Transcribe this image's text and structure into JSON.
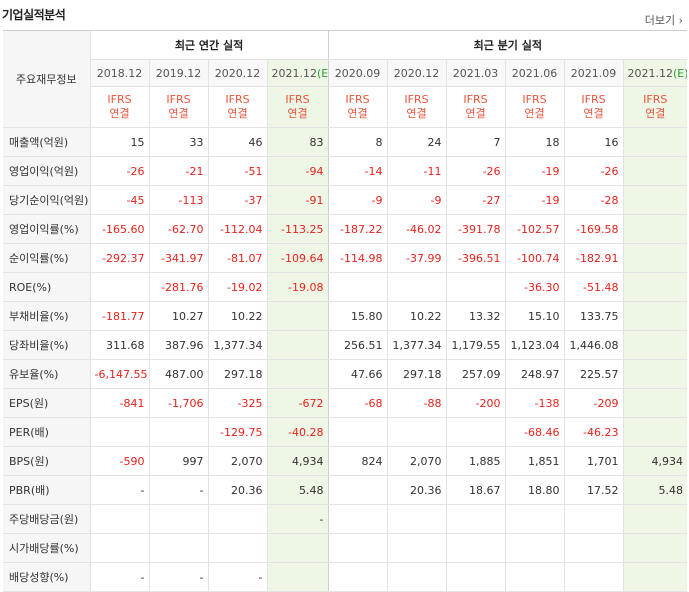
{
  "header": {
    "title": "기업실적분석",
    "more": "더보기 ›"
  },
  "table": {
    "corner": "주요재무정보",
    "groups": {
      "annual": "최근 연간 실적",
      "quarterly": "최근 분기 실적"
    },
    "periods": [
      "2018.12",
      "2019.12",
      "2020.12",
      "2021.12",
      "2020.09",
      "2020.12",
      "2021.03",
      "2021.06",
      "2021.09",
      "2021.12"
    ],
    "est_mark": "(E)",
    "ifrs_line1": "IFRS",
    "ifrs_line2": "연결",
    "rows": [
      {
        "label": "매출액(억원)",
        "values": [
          "15",
          "33",
          "46",
          "83",
          "8",
          "24",
          "7",
          "18",
          "16",
          ""
        ]
      },
      {
        "label": "영업이익(억원)",
        "values": [
          "-26",
          "-21",
          "-51",
          "-94",
          "-14",
          "-11",
          "-26",
          "-19",
          "-26",
          ""
        ]
      },
      {
        "label": "당기순이익(억원)",
        "values": [
          "-45",
          "-113",
          "-37",
          "-91",
          "-9",
          "-9",
          "-27",
          "-19",
          "-28",
          ""
        ]
      },
      {
        "label": "영업이익률(%)",
        "values": [
          "-165.60",
          "-62.70",
          "-112.04",
          "-113.25",
          "-187.22",
          "-46.02",
          "-391.78",
          "-102.57",
          "-169.58",
          ""
        ]
      },
      {
        "label": "순이익률(%)",
        "values": [
          "-292.37",
          "-341.97",
          "-81.07",
          "-109.64",
          "-114.98",
          "-37.99",
          "-396.51",
          "-100.74",
          "-182.91",
          ""
        ]
      },
      {
        "label": "ROE(%)",
        "values": [
          "",
          "-281.76",
          "-19.02",
          "-19.08",
          "",
          "",
          "",
          "-36.30",
          "-51.48",
          ""
        ]
      },
      {
        "label": "부채비율(%)",
        "values": [
          "-181.77",
          "10.27",
          "10.22",
          "",
          "15.80",
          "10.22",
          "13.32",
          "15.10",
          "133.75",
          ""
        ]
      },
      {
        "label": "당좌비율(%)",
        "values": [
          "311.68",
          "387.96",
          "1,377.34",
          "",
          "256.51",
          "1,377.34",
          "1,179.55",
          "1,123.04",
          "1,446.08",
          ""
        ]
      },
      {
        "label": "유보율(%)",
        "values": [
          "-6,147.55",
          "487.00",
          "297.18",
          "",
          "47.66",
          "297.18",
          "257.09",
          "248.97",
          "225.57",
          ""
        ]
      },
      {
        "label": "EPS(원)",
        "values": [
          "-841",
          "-1,706",
          "-325",
          "-672",
          "-68",
          "-88",
          "-200",
          "-138",
          "-209",
          ""
        ]
      },
      {
        "label": "PER(배)",
        "values": [
          "",
          "",
          "-129.75",
          "-40.28",
          "",
          "",
          "",
          "-68.46",
          "-46.23",
          ""
        ]
      },
      {
        "label": "BPS(원)",
        "values": [
          "-590",
          "997",
          "2,070",
          "4,934",
          "824",
          "2,070",
          "1,885",
          "1,851",
          "1,701",
          "4,934"
        ]
      },
      {
        "label": "PBR(배)",
        "values": [
          "-",
          "-",
          "20.36",
          "5.48",
          "",
          "20.36",
          "18.67",
          "18.80",
          "17.52",
          "5.48"
        ]
      },
      {
        "label": "주당배당금(원)",
        "values": [
          "",
          "",
          "",
          "-",
          "",
          "",
          "",
          "",
          "",
          ""
        ]
      },
      {
        "label": "시가배당률(%)",
        "values": [
          "",
          "",
          "",
          "",
          "",
          "",
          "",
          "",
          "",
          ""
        ]
      },
      {
        "label": "배당성향(%)",
        "values": [
          "-",
          "-",
          "-",
          "",
          "",
          "",
          "",
          "",
          "",
          ""
        ]
      }
    ]
  }
}
